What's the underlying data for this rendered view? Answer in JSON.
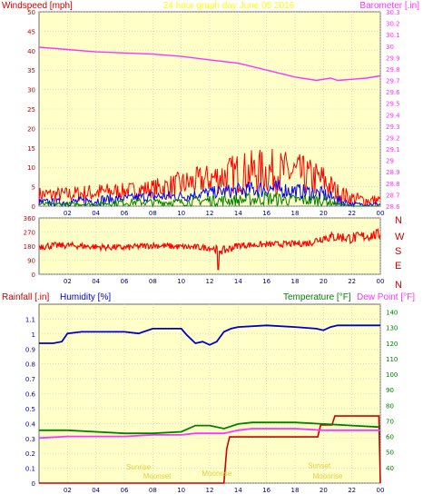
{
  "chart_data": [
    {
      "type": "line",
      "title": "24 hour graph day   June 05 2016",
      "ylabel": "Windspeed [mph]",
      "y2label": "Barometer [.in]",
      "x_ticks": [
        "02",
        "04",
        "06",
        "08",
        "10",
        "12",
        "14",
        "16",
        "18",
        "20",
        "22",
        "00"
      ],
      "x_range": [
        0,
        24
      ],
      "ylim": [
        0,
        50
      ],
      "yticks": [
        "0",
        "5",
        "10",
        "15",
        "20",
        "25",
        "30",
        "35",
        "40",
        "45",
        "50"
      ],
      "y2lim": [
        28.6,
        30.3
      ],
      "y2ticks": [
        "28.6",
        "28.7",
        "28.8",
        "28.9",
        "29",
        "29.1",
        "29.2",
        "29.3",
        "29.4",
        "29.5",
        "29.6",
        "29.7",
        "29.8",
        "29.9",
        "30",
        "30.1",
        "30.2",
        "30.3"
      ],
      "grid": true,
      "series": [
        {
          "name": "Barometer",
          "color": "#ff33ff",
          "axis": "right",
          "x": [
            0,
            2,
            4,
            6,
            8,
            10,
            12,
            14,
            16,
            18,
            19.5,
            20.5,
            21,
            22,
            23,
            24
          ],
          "values": [
            29.99,
            29.97,
            29.95,
            29.94,
            29.93,
            29.91,
            29.88,
            29.85,
            29.79,
            29.73,
            29.7,
            29.72,
            29.7,
            29.71,
            29.72,
            29.74
          ]
        },
        {
          "color": "#ff0000",
          "role": "gust",
          "x": [
            0,
            2,
            4,
            6,
            8,
            10,
            12,
            14,
            16,
            18,
            20,
            21,
            22,
            23,
            24
          ],
          "envelope_low": [
            1,
            1,
            1,
            2,
            2,
            2,
            3,
            3,
            3,
            3,
            2,
            1,
            0,
            0,
            0
          ],
          "envelope_high": [
            5,
            5,
            6,
            6,
            7,
            9,
            11,
            14,
            15,
            14,
            11,
            6,
            4,
            3,
            3
          ]
        },
        {
          "color": "#0000ff",
          "role": "average",
          "x": [
            0,
            2,
            4,
            6,
            8,
            10,
            12,
            14,
            16,
            18,
            20,
            21,
            22,
            23,
            24
          ],
          "envelope_low": [
            0,
            0,
            0,
            1,
            1,
            1,
            2,
            2,
            2,
            2,
            1,
            0,
            0,
            0,
            0
          ],
          "envelope_high": [
            2,
            2,
            3,
            3,
            4,
            4,
            5,
            6,
            7,
            6,
            5,
            3,
            1,
            1,
            1
          ]
        },
        {
          "color": "#008000",
          "role": "wind",
          "x": [
            0,
            2,
            4,
            6,
            8,
            10,
            12,
            14,
            16,
            18,
            20,
            21,
            22,
            23,
            24
          ],
          "envelope_low": [
            0,
            0,
            0,
            0,
            0,
            0,
            0,
            0,
            0,
            0,
            0,
            0,
            0,
            0,
            0
          ],
          "envelope_high": [
            1,
            1,
            1,
            2,
            2,
            2,
            3,
            3,
            4,
            3,
            3,
            1,
            0,
            0,
            0
          ]
        }
      ]
    },
    {
      "type": "line",
      "x_ticks": [
        "02",
        "04",
        "06",
        "08",
        "10",
        "12",
        "14",
        "16",
        "18",
        "20",
        "22",
        "00"
      ],
      "x_range": [
        0,
        24
      ],
      "ylim": [
        0,
        360
      ],
      "yticks": [
        "0",
        "90",
        "180",
        "270",
        "360"
      ],
      "y2ticks": [
        "N",
        "W",
        "S",
        "E",
        "N"
      ],
      "grid": true,
      "series": [
        {
          "color": "#ff0000",
          "role": "direction",
          "x": [
            0,
            2,
            4,
            6,
            8,
            10,
            12,
            13,
            14,
            16,
            18,
            19,
            20,
            21,
            22,
            23,
            24
          ],
          "values": [
            180,
            185,
            175,
            170,
            185,
            175,
            170,
            150,
            185,
            190,
            195,
            200,
            235,
            240,
            230,
            245,
            255
          ],
          "spread": [
            25,
            20,
            20,
            20,
            20,
            20,
            20,
            30,
            20,
            20,
            20,
            25,
            30,
            35,
            35,
            35,
            35
          ]
        }
      ]
    },
    {
      "type": "line",
      "labels": {
        "rain": "Rainfall [.in]",
        "humidity": "Humidity [%]",
        "temperature": "Temperature [°F]",
        "dew": "Dew Point [°F]"
      },
      "x_ticks": [
        "02",
        "04",
        "06",
        "08",
        "10",
        "12",
        "14",
        "16",
        "18",
        "20",
        "22",
        "00"
      ],
      "x_range": [
        0,
        24
      ],
      "ylim": [
        0,
        1.2
      ],
      "yticks": [
        "0",
        "0.1",
        "0.2",
        "0.3",
        "0.4",
        "0.5",
        "0.6",
        "0.7",
        "0.8",
        "0.9",
        "1",
        "1.1"
      ],
      "y2lim": [
        30,
        145
      ],
      "y2ticks": [
        "40",
        "50",
        "60",
        "70",
        "80",
        "90",
        "100",
        "110",
        "120",
        "130",
        "140"
      ],
      "grid": true,
      "series": [
        {
          "name": "Rainfall",
          "color": "#cc0000",
          "axis": "left",
          "step": true,
          "x": [
            0,
            13,
            13.2,
            13.4,
            19.6,
            19.8,
            20.6,
            20.8,
            23.9,
            24
          ],
          "values": [
            0,
            0,
            0.23,
            0.31,
            0.31,
            0.39,
            0.39,
            0.45,
            0.45,
            0
          ]
        },
        {
          "name": "Humidity",
          "color": "#0000cc",
          "axis": "humidity",
          "x": [
            0,
            1,
            1.6,
            2,
            3,
            4,
            5,
            6,
            7,
            8,
            9,
            10,
            10.4,
            11,
            11.5,
            12,
            12.5,
            13,
            13.5,
            14,
            16,
            18,
            19.5,
            20,
            20.5,
            21,
            22,
            23,
            24
          ],
          "values": [
            86,
            86,
            87,
            92,
            93,
            93,
            93,
            93,
            92,
            95,
            95,
            95,
            91,
            86,
            87,
            85,
            87,
            93,
            95,
            96,
            97,
            96,
            95,
            94,
            96,
            97,
            97,
            97,
            97
          ]
        },
        {
          "name": "Temperature",
          "color": "#008000",
          "axis": "right",
          "x": [
            0,
            2,
            4,
            6,
            8,
            10,
            11,
            12,
            13,
            14,
            15,
            18,
            20,
            22,
            24
          ],
          "values": [
            64,
            64,
            63,
            62,
            62,
            63,
            67,
            67,
            65,
            68,
            69,
            69,
            68,
            67,
            66
          ]
        },
        {
          "name": "Dew Point",
          "color": "#ff33ff",
          "axis": "right",
          "x": [
            0,
            2,
            4,
            6,
            8,
            10,
            11,
            12,
            13,
            14,
            15,
            18,
            20,
            22,
            24
          ],
          "values": [
            59,
            60,
            60,
            60,
            61,
            61,
            62,
            62,
            62,
            64,
            65,
            65,
            64,
            64,
            64
          ]
        }
      ],
      "humidity_lim": [
        0,
        110
      ],
      "faint_labels": [
        "Sunrise",
        "Moonset",
        "Moonrise",
        "Sunset",
        "Moonrise"
      ]
    }
  ]
}
